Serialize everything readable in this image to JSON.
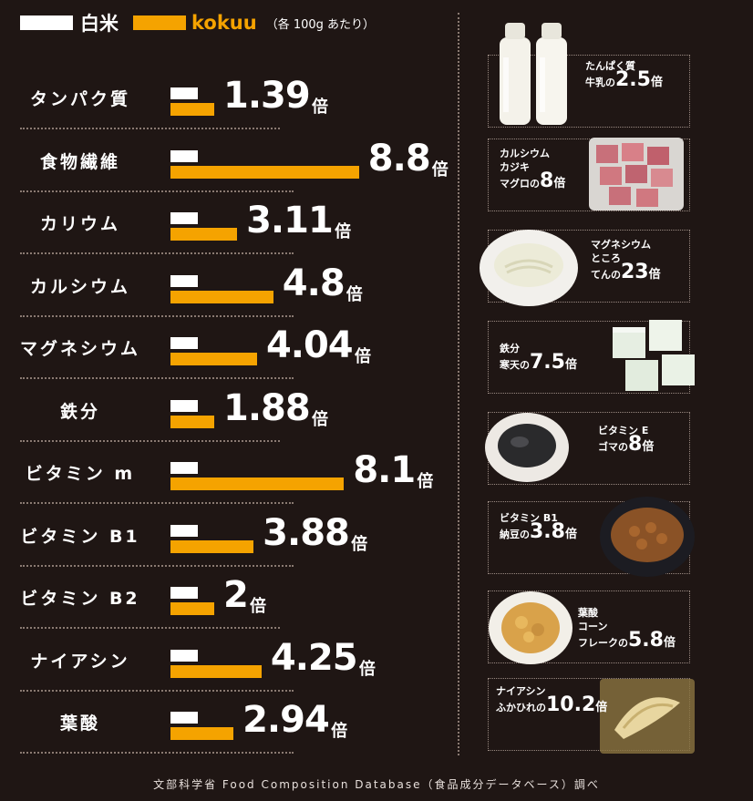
{
  "legend": {
    "white_label": "白米",
    "orange_label": "kokuu",
    "note": "（各 100g あたり）"
  },
  "colors": {
    "background": "#1f1614",
    "white_rice": "#ffffff",
    "kokuu": "#f5a300"
  },
  "unit": "倍",
  "chart_data": {
    "type": "bar",
    "orientation": "horizontal",
    "categories": [
      "タンパク質",
      "食物繊維",
      "カリウム",
      "カルシウム",
      "マグネシウム",
      "鉄分",
      "ビタミン m",
      "ビタミン B1",
      "ビタミン B2",
      "ナイアシン",
      "葉酸"
    ],
    "series": [
      {
        "name": "白米",
        "values": [
          1,
          1,
          1,
          1,
          1,
          1,
          1,
          1,
          1,
          1,
          1
        ]
      },
      {
        "name": "kokuu",
        "values": [
          1.39,
          8.8,
          3.11,
          4.8,
          4.04,
          1.88,
          8.1,
          3.88,
          2,
          4.25,
          2.94
        ]
      }
    ],
    "value_labels": [
      "1.39",
      "8.8",
      "3.11",
      "4.8",
      "4.04",
      "1.88",
      "8.1",
      "3.88",
      "2",
      "4.25",
      "2.94"
    ],
    "legend_position": "top-left",
    "grid": false
  },
  "comparisons": [
    {
      "nutrient": "たんぱく質",
      "food": "牛乳の",
      "value": "2.5",
      "unit": "倍",
      "image": "milk-bottles"
    },
    {
      "nutrient": "カルシウム",
      "food": "カジキ\nマグロの",
      "value": "8",
      "unit": "倍",
      "image": "tuna-cubes"
    },
    {
      "nutrient": "マグネシウム",
      "food": "ところ\nてんの",
      "value": "23",
      "unit": "倍",
      "image": "tokoroten-bowl"
    },
    {
      "nutrient": "鉄分",
      "food": "寒天の",
      "value": "7.5",
      "unit": "倍",
      "image": "kanten-blocks"
    },
    {
      "nutrient": "ビタミン E",
      "food": "ゴマの",
      "value": "8",
      "unit": "倍",
      "image": "sesame-bowl"
    },
    {
      "nutrient": "ビタミン B1",
      "food": "納豆の",
      "value": "3.8",
      "unit": "倍",
      "image": "natto-bowl"
    },
    {
      "nutrient": "葉酸",
      "food": "コーン\nフレークの",
      "value": "5.8",
      "unit": "倍",
      "image": "cornflakes-plate"
    },
    {
      "nutrient": "ナイアシン",
      "food": "ふかひれの",
      "value": "10.2",
      "unit": "倍",
      "image": "shark-fin-tray"
    }
  ],
  "footer": "文部科学省 Food Composition Database（食品成分データベース）調べ"
}
